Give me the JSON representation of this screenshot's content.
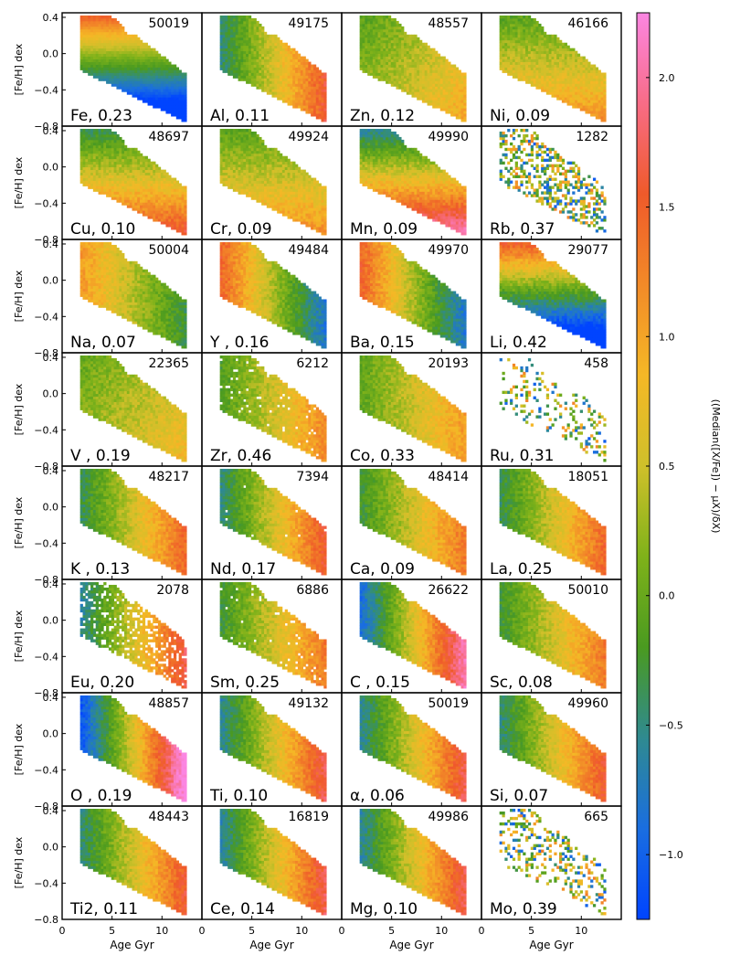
{
  "chart_data": {
    "type": "heatmap",
    "grid": {
      "rows": 8,
      "cols": 4
    },
    "x_axis": {
      "label": "Age Gyr",
      "range": [
        0,
        14
      ],
      "ticks": [
        0,
        5,
        10
      ]
    },
    "y_axis": {
      "label": "[Fe/H] dex",
      "range": [
        -0.8,
        0.45
      ],
      "ticks": [
        0.4,
        0.0,
        -0.4,
        -0.8
      ],
      "tick_labels": [
        "0.4",
        "0.0",
        "−0.4",
        "−0.8"
      ]
    },
    "colorbar": {
      "label": "((Median([X/Fe]) − μX)/δX)",
      "range": [
        -1.25,
        2.25
      ],
      "ticks": [
        -1.0,
        -0.5,
        0.0,
        0.5,
        1.0,
        1.5,
        2.0
      ],
      "tick_labels": [
        "−1.0",
        "−0.5",
        "0.0",
        "0.5",
        "1.0",
        "1.5",
        "2.0"
      ],
      "colors": [
        "#0044ff",
        "#1a6ee0",
        "#2f8a90",
        "#4a9a20",
        "#7fb21a",
        "#cfc02a",
        "#f5b826",
        "#f28a28",
        "#ef5a2a",
        "#f86c86",
        "#fb86e2"
      ]
    },
    "panels": [
      {
        "label": "Fe, 0.23",
        "count": "50019",
        "pattern": "horizontal",
        "trend": 1.0,
        "density": 1.0
      },
      {
        "label": "Al, 0.11",
        "count": "49175",
        "pattern": "age",
        "trend": 0.9,
        "density": 1.0
      },
      {
        "label": "Zn, 0.12",
        "count": "48557",
        "pattern": "mixed",
        "trend": 0.5,
        "density": 1.0
      },
      {
        "label": "Ni, 0.09",
        "count": "46166",
        "pattern": "feh",
        "trend": 0.5,
        "density": 1.0
      },
      {
        "label": "Cu, 0.10",
        "count": "48697",
        "pattern": "feh",
        "trend": 0.8,
        "density": 1.0
      },
      {
        "label": "Cr, 0.09",
        "count": "49924",
        "pattern": "feh",
        "trend": 0.5,
        "density": 1.0
      },
      {
        "label": "Mn, 0.09",
        "count": "49990",
        "pattern": "feh",
        "trend": 1.1,
        "density": 1.0
      },
      {
        "label": "Rb, 0.37",
        "count": "1282",
        "pattern": "noise",
        "trend": 0.3,
        "density": 0.45
      },
      {
        "label": "Na, 0.07",
        "count": "50004",
        "pattern": "age",
        "trend": -0.6,
        "density": 1.0
      },
      {
        "label": "Y , 0.16",
        "count": "49484",
        "pattern": "age",
        "trend": -1.0,
        "density": 1.0
      },
      {
        "label": "Ba, 0.15",
        "count": "49970",
        "pattern": "age",
        "trend": -1.0,
        "density": 1.0
      },
      {
        "label": "Li, 0.42",
        "count": "29077",
        "pattern": "feh",
        "trend": -1.4,
        "density": 1.0
      },
      {
        "label": "V , 0.19",
        "count": "22365",
        "pattern": "mixed",
        "trend": 0.4,
        "density": 1.0
      },
      {
        "label": "Zr, 0.46",
        "count": "6212",
        "pattern": "age",
        "trend": 0.6,
        "density": 0.95
      },
      {
        "label": "Co, 0.33",
        "count": "20193",
        "pattern": "age",
        "trend": 0.5,
        "density": 1.0
      },
      {
        "label": "Ru, 0.31",
        "count": "458",
        "pattern": "noise",
        "trend": 0.0,
        "density": 0.22
      },
      {
        "label": "K , 0.13",
        "count": "48217",
        "pattern": "age",
        "trend": 0.8,
        "density": 1.0
      },
      {
        "label": "Nd, 0.17",
        "count": "7394",
        "pattern": "age",
        "trend": 0.9,
        "density": 0.98
      },
      {
        "label": "Ca, 0.09",
        "count": "48414",
        "pattern": "age",
        "trend": 0.7,
        "density": 1.0
      },
      {
        "label": "La, 0.25",
        "count": "18051",
        "pattern": "age",
        "trend": 0.8,
        "density": 1.0
      },
      {
        "label": "Eu, 0.20",
        "count": "2078",
        "pattern": "age",
        "trend": 1.0,
        "density": 0.75
      },
      {
        "label": "Sm, 0.25",
        "count": "6886",
        "pattern": "age",
        "trend": 0.7,
        "density": 0.95
      },
      {
        "label": "C , 0.15",
        "count": "26622",
        "pattern": "age",
        "trend": 1.3,
        "density": 1.0
      },
      {
        "label": "Sc, 0.08",
        "count": "50010",
        "pattern": "age",
        "trend": 0.7,
        "density": 1.0
      },
      {
        "label": "O , 0.19",
        "count": "48857",
        "pattern": "age",
        "trend": 1.5,
        "density": 1.0
      },
      {
        "label": "Ti, 0.10",
        "count": "49132",
        "pattern": "age",
        "trend": 1.0,
        "density": 1.0
      },
      {
        "label": "α, 0.06",
        "count": "50019",
        "pattern": "age",
        "trend": 1.0,
        "density": 1.0
      },
      {
        "label": "Si, 0.07",
        "count": "49960",
        "pattern": "age",
        "trend": 0.9,
        "density": 1.0
      },
      {
        "label": "Ti2, 0.11",
        "count": "48443",
        "pattern": "age",
        "trend": 0.9,
        "density": 1.0
      },
      {
        "label": "Ce, 0.14",
        "count": "16819",
        "pattern": "age",
        "trend": 1.0,
        "density": 1.0
      },
      {
        "label": "Mg, 0.10",
        "count": "49986",
        "pattern": "age",
        "trend": 1.0,
        "density": 1.0
      },
      {
        "label": "Mo, 0.39",
        "count": "665",
        "pattern": "noise",
        "trend": 0.2,
        "density": 0.3
      }
    ]
  }
}
